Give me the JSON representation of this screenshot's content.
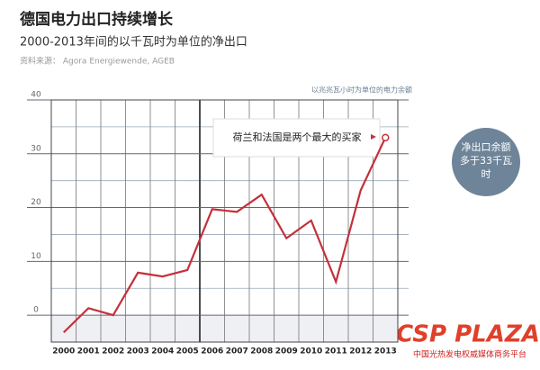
{
  "chart_data": {
    "type": "line",
    "title": "德国电力出口持续增长",
    "subtitle": "2000-2013年间的以千瓦时为单位的净出口",
    "source": "资料来源： Agora Energiewende, AGEB",
    "y_label": "以兆兆瓦小时为单位的电力余额",
    "annotation": "荷兰和法国是两个最大的买家",
    "callout": [
      "净出口余额",
      "多于33千瓦",
      "时"
    ],
    "watermark": "CSP PLAZA",
    "watermark_sub": "中国光热发电权威媒体商务平台",
    "categories": [
      "2000",
      "2001",
      "2002",
      "2003",
      "2004",
      "2005",
      "2006",
      "2007",
      "2008",
      "2009",
      "2010",
      "2011",
      "2012",
      "2013"
    ],
    "series": [
      {
        "name": "净出口",
        "color": "#c4303c",
        "values": [
          -3.2,
          1.3,
          0,
          7.9,
          7.2,
          8.4,
          19.7,
          19.2,
          22.4,
          14.3,
          17.6,
          6.2,
          23.2,
          33
        ]
      }
    ],
    "ylim": [
      -5,
      40
    ],
    "yticks": [
      0,
      10,
      20,
      30,
      40
    ],
    "minor_yticks": [
      5,
      15,
      25,
      35
    ],
    "grid": true
  }
}
